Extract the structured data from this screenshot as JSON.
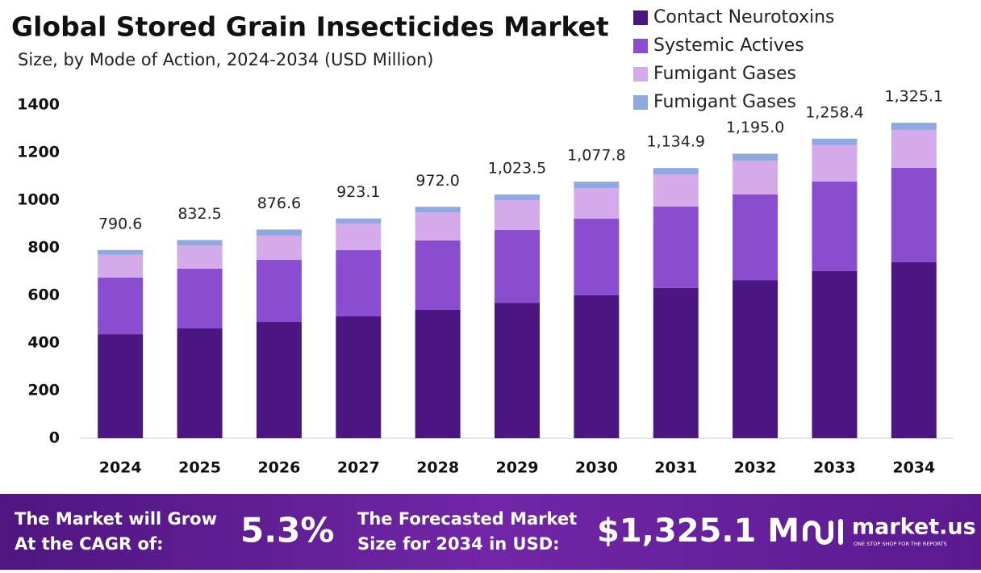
{
  "chart_data": {
    "type": "stacked_bar",
    "title": "Global Stored Grain Insecticides Market",
    "subtitle": "Size, by Mode of Action, 2024-2034 (USD Million)",
    "categories": [
      "2024",
      "2025",
      "2026",
      "2027",
      "2028",
      "2029",
      "2030",
      "2031",
      "2032",
      "2033",
      "2034"
    ],
    "series": [
      {
        "name": "Contact Neurotoxins",
        "color": "#4b1681",
        "values": [
          437,
          461,
          488,
          512,
          539,
          569,
          600,
          631,
          664,
          702,
          739
        ]
      },
      {
        "name": "Systemic Actives",
        "color": "#8a4dcf",
        "values": [
          238,
          251,
          261,
          278,
          292,
          306,
          322,
          342,
          360,
          376,
          397
        ]
      },
      {
        "name": "Fumigant Gases",
        "color": "#d5aaeb",
        "values": [
          95,
          98,
          102,
          112,
          118,
          125,
          129,
          135,
          142,
          153,
          159
        ]
      },
      {
        "name": "Fumigant Gases",
        "color": "#8fa9e0",
        "values": [
          20.6,
          22.5,
          25.6,
          21.1,
          23,
          23.5,
          26.8,
          26.9,
          29,
          27.4,
          30.1
        ]
      }
    ],
    "totals": {
      "values": [
        790.6,
        832.5,
        876.6,
        923.1,
        972.0,
        1023.5,
        1077.8,
        1134.9,
        1195.0,
        1258.4,
        1325.1
      ],
      "value_labels": [
        "790.6",
        "832.5",
        "876.6",
        "923.1",
        "972.0",
        "1,023.5",
        "1,077.8",
        "1,134.9",
        "1,195.0",
        "1,258.4",
        "1,325.1"
      ]
    },
    "ylim": [
      0,
      1400
    ],
    "yticks": [
      0,
      200,
      400,
      600,
      800,
      1000,
      1200,
      1400
    ],
    "legend": "top-right"
  },
  "footer": {
    "cagr_text": [
      "The Market will Grow",
      "At the CAGR of:"
    ],
    "cagr": "5.3%",
    "forecast_text": [
      "The Forecasted Market",
      "Size for 2034 in USD:"
    ],
    "forecast": "$1,325.1 M",
    "brand": "market.us",
    "tagline": "ONE STOP SHOP FOR THE REPORTS"
  }
}
